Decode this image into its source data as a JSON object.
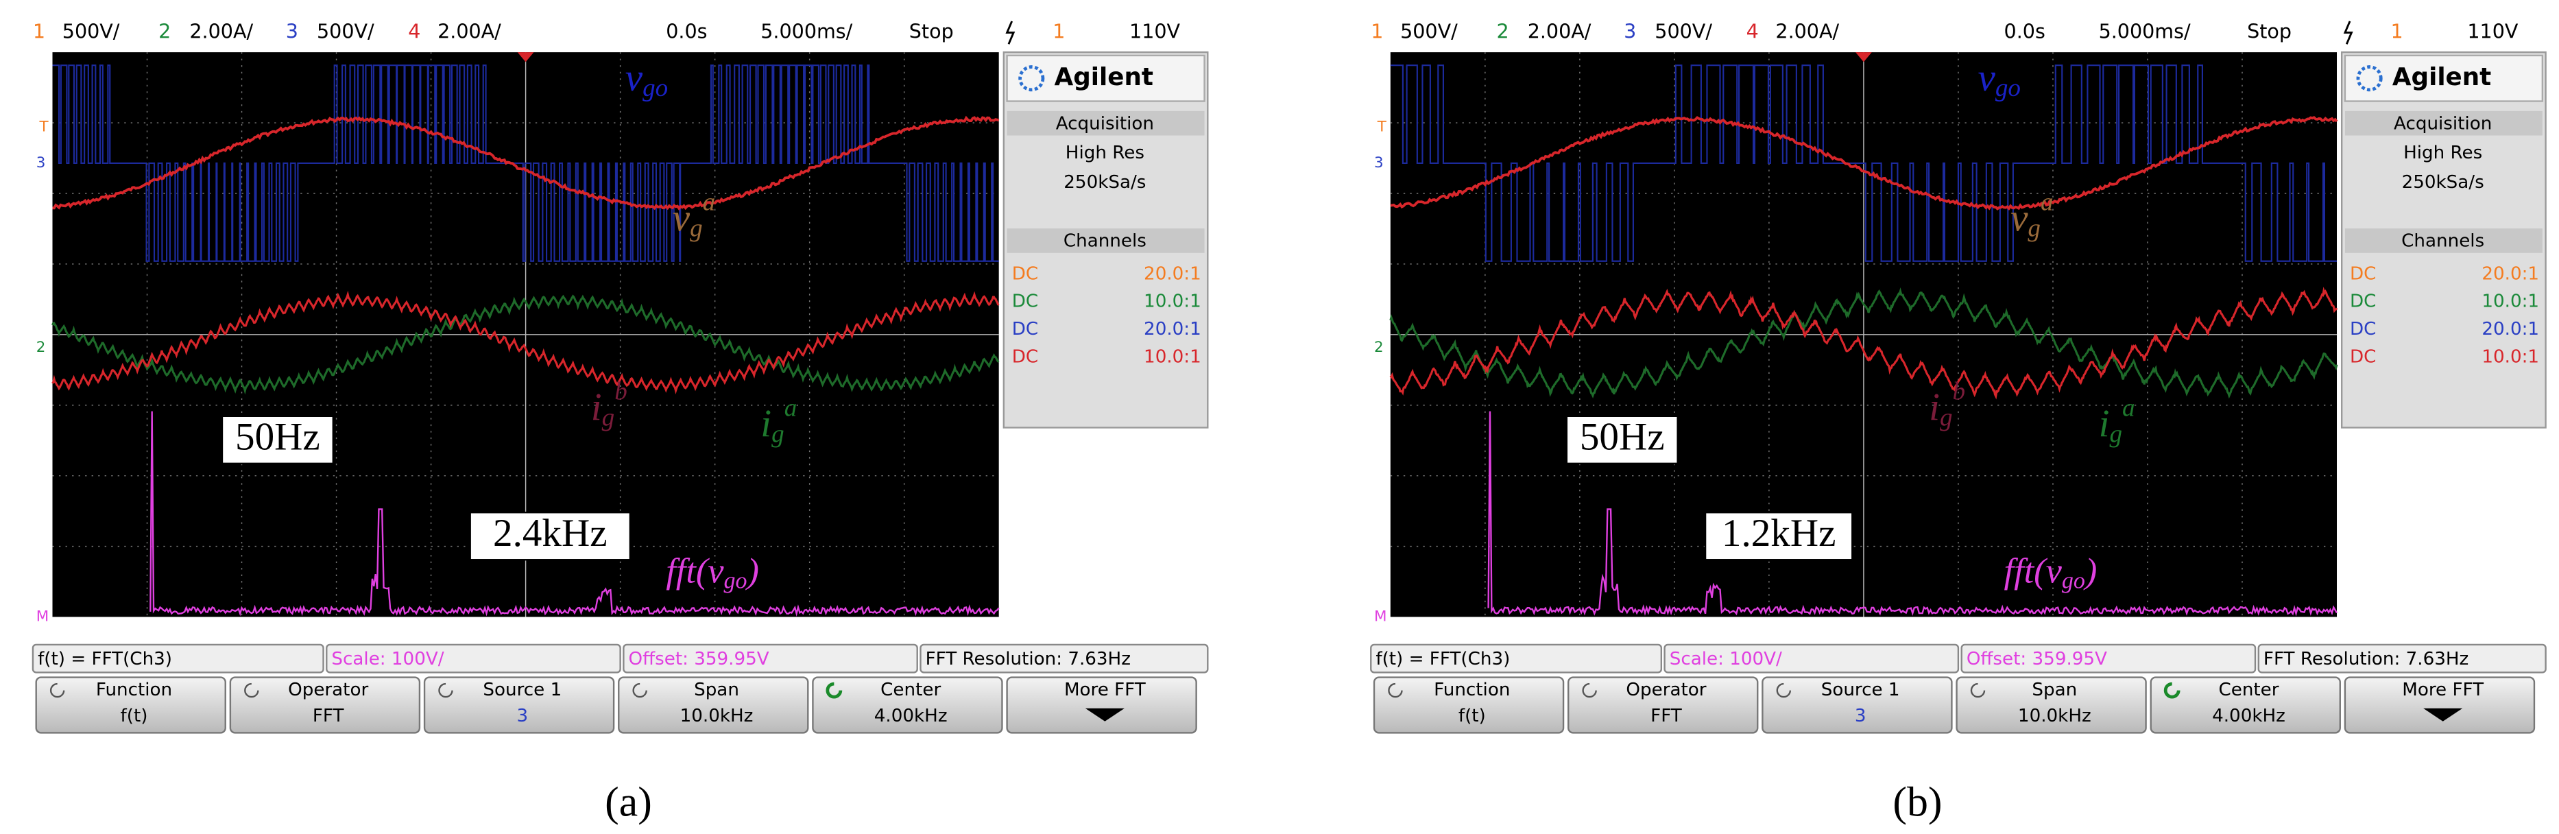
{
  "panels": [
    {
      "label": "(a)",
      "status_bar": {
        "ch1": "1",
        "ch1_scale": "500V/",
        "ch2": "2",
        "ch2_scale": "2.00A/",
        "ch3": "3",
        "ch3_scale": "500V/",
        "ch4": "4",
        "ch4_scale": "2.00A/",
        "time_offset": "0.0s",
        "time_scale": "5.000ms/",
        "run_state": "Stop",
        "trigger_channel": "1",
        "trigger_level": "110V"
      },
      "markers": [
        "T",
        "3",
        "2",
        "M"
      ],
      "trace_labels": {
        "v_go": {
          "main": "v",
          "sub": "go"
        },
        "v_ga": {
          "main": "v",
          "sub": "g",
          "sup": "a"
        },
        "i_gb": {
          "main": "i",
          "sub": "g",
          "sup": "b"
        },
        "i_ga": {
          "main": "i",
          "sub": "g",
          "sup": "a"
        },
        "fft": {
          "prefix": "fft(",
          "main": "v",
          "sub": "go",
          "suffix": ")"
        }
      },
      "annotations": {
        "fundamental": "50Hz",
        "switching": "2.4kHz"
      },
      "side_panel": {
        "brand": "Agilent",
        "acquisition_title": "Acquisition",
        "acq_mode": "High Res",
        "sample_rate": "250kSa/s",
        "channels_title": "Channels",
        "channels": [
          {
            "coupling": "DC",
            "ratio": "20.0:1"
          },
          {
            "coupling": "DC",
            "ratio": "10.0:1"
          },
          {
            "coupling": "DC",
            "ratio": "20.0:1"
          },
          {
            "coupling": "DC",
            "ratio": "10.0:1"
          }
        ]
      },
      "function_bar": {
        "function": "f(t) = FFT(Ch3)",
        "scale": "Scale: 100V/",
        "offset": "Offset: 359.95V",
        "resolution": "FFT Resolution: 7.63Hz"
      },
      "softkeys": [
        {
          "label": "Function",
          "value": "f(t)"
        },
        {
          "label": "Operator",
          "value": "FFT"
        },
        {
          "label": "Source 1",
          "value": "3"
        },
        {
          "label": "Span",
          "value": "10.0kHz"
        },
        {
          "label": "Center",
          "value": "4.00kHz"
        },
        {
          "label": "More FFT"
        }
      ]
    },
    {
      "label": "(b)",
      "status_bar": {
        "ch1": "1",
        "ch1_scale": "500V/",
        "ch2": "2",
        "ch2_scale": "2.00A/",
        "ch3": "3",
        "ch3_scale": "500V/",
        "ch4": "4",
        "ch4_scale": "2.00A/",
        "time_offset": "0.0s",
        "time_scale": "5.000ms/",
        "run_state": "Stop",
        "trigger_channel": "1",
        "trigger_level": "110V"
      },
      "markers": [
        "T",
        "3",
        "2",
        "M"
      ],
      "trace_labels": {
        "v_go": {
          "main": "v",
          "sub": "go"
        },
        "v_ga": {
          "main": "v",
          "sub": "g",
          "sup": "a"
        },
        "i_gb": {
          "main": "i",
          "sub": "g",
          "sup": "b"
        },
        "i_ga": {
          "main": "i",
          "sub": "g",
          "sup": "a"
        },
        "fft": {
          "prefix": "fft(",
          "main": "v",
          "sub": "go",
          "suffix": ")"
        }
      },
      "annotations": {
        "fundamental": "50Hz",
        "switching": "1.2kHz"
      },
      "side_panel": {
        "brand": "Agilent",
        "acquisition_title": "Acquisition",
        "acq_mode": "High Res",
        "sample_rate": "250kSa/s",
        "channels_title": "Channels",
        "channels": [
          {
            "coupling": "DC",
            "ratio": "20.0:1"
          },
          {
            "coupling": "DC",
            "ratio": "10.0:1"
          },
          {
            "coupling": "DC",
            "ratio": "20.0:1"
          },
          {
            "coupling": "DC",
            "ratio": "10.0:1"
          }
        ]
      },
      "function_bar": {
        "function": "f(t) = FFT(Ch3)",
        "scale": "Scale: 100V/",
        "offset": "Offset: 359.95V",
        "resolution": "FFT Resolution: 7.63Hz"
      },
      "softkeys": [
        {
          "label": "Function",
          "value": "f(t)"
        },
        {
          "label": "Operator",
          "value": "FFT"
        },
        {
          "label": "Source 1",
          "value": "3"
        },
        {
          "label": "Span",
          "value": "10.0kHz"
        },
        {
          "label": "Center",
          "value": "4.00kHz"
        },
        {
          "label": "More FFT"
        }
      ]
    }
  ]
}
